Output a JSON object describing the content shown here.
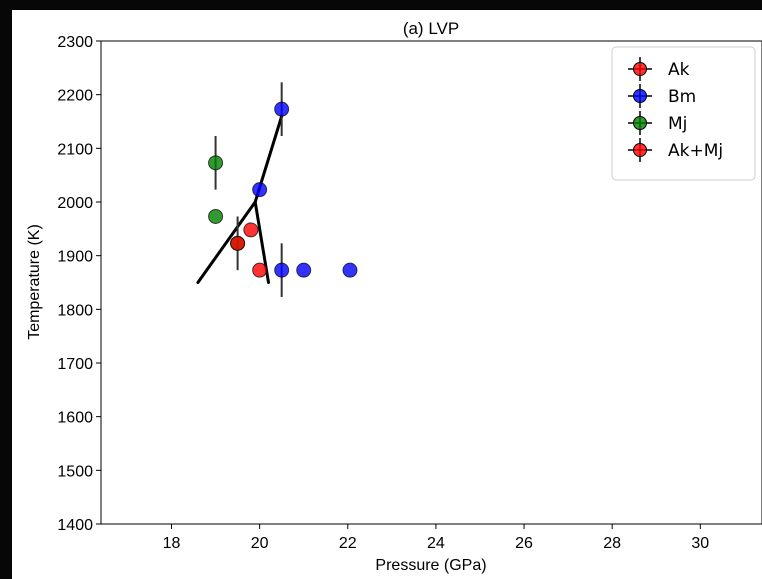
{
  "chart_data": {
    "type": "scatter",
    "title": "(a) LVP",
    "xlabel": "Pressure (GPa)",
    "ylabel": "Temperature (K)",
    "xlim": [
      16.4,
      31.4
    ],
    "ylim": [
      1400,
      2300
    ],
    "xticks": [
      18,
      20,
      22,
      24,
      26,
      28,
      30
    ],
    "yticks": [
      1400,
      1500,
      1600,
      1700,
      1800,
      1900,
      2000,
      2100,
      2200,
      2300
    ],
    "grid": false,
    "legend_position": "top-right",
    "series": [
      {
        "name": "Ak",
        "color": "#ff0000",
        "points": [
          {
            "x": 19.8,
            "y": 1948,
            "yerr": 0
          },
          {
            "x": 20.0,
            "y": 1873,
            "yerr": 0
          }
        ]
      },
      {
        "name": "Bm",
        "color": "#0000ff",
        "points": [
          {
            "x": 20.5,
            "y": 2173,
            "yerr": 50
          },
          {
            "x": 20.0,
            "y": 2023,
            "yerr": 0
          },
          {
            "x": 20.5,
            "y": 1873,
            "yerr": 50
          },
          {
            "x": 21.0,
            "y": 1873,
            "yerr": 0
          },
          {
            "x": 22.05,
            "y": 1873,
            "yerr": 0
          }
        ]
      },
      {
        "name": "Mj",
        "color": "#008000",
        "points": [
          {
            "x": 19.0,
            "y": 2073,
            "yerr": 50
          },
          {
            "x": 19.0,
            "y": 1973,
            "yerr": 0
          },
          {
            "x": 19.5,
            "y": 1923,
            "yerr": 50
          }
        ]
      },
      {
        "name": "Ak+Mj",
        "color": "#ff0000",
        "points": [
          {
            "x": 19.5,
            "y": 1923,
            "yerr": 0
          }
        ]
      }
    ],
    "phase_boundaries": [
      {
        "points": [
          [
            18.6,
            1850
          ],
          [
            19.9,
            2000
          ],
          [
            20.5,
            2160
          ]
        ]
      },
      {
        "points": [
          [
            19.9,
            2000
          ],
          [
            20.2,
            1850
          ]
        ]
      }
    ]
  }
}
